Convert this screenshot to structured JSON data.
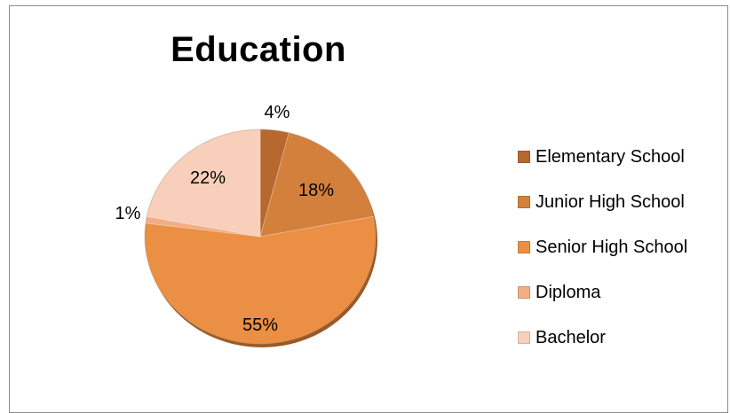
{
  "chart_data": {
    "type": "pie",
    "title": "Education",
    "categories": [
      "Elementary School",
      "Junior High School",
      "Senior High School",
      "Diploma",
      "Bachelor"
    ],
    "values": [
      4,
      18,
      55,
      1,
      22
    ],
    "labels": [
      "4%",
      "18%",
      "55%",
      "1%",
      "22%"
    ],
    "colors": [
      "#b7682f",
      "#d3803d",
      "#ea8f43",
      "#f2ad82",
      "#f7cfbb"
    ],
    "legend_position": "right"
  }
}
